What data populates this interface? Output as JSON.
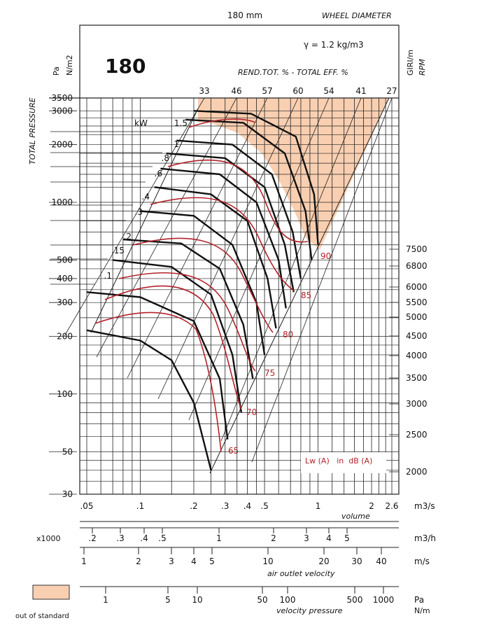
{
  "header": {
    "top_title": "180 mm",
    "top_right_title": "WHEEL DIAMETER",
    "model": "180",
    "density": "γ = 1.2 kg/m3",
    "efficiency_label": "REND.TOT. % - TOTAL EFF. %",
    "efficiency_values": [
      "33",
      "46",
      "57",
      "60",
      "54",
      "41",
      "27"
    ]
  },
  "left_axis": {
    "unit_pa": "Pa",
    "unit_nm2": "N/m2",
    "title": "TOTAL PRESSURE",
    "ticks": [
      "3500",
      "3000",
      "2000",
      "1000",
      "500",
      "400",
      "300",
      "200",
      "100",
      "50",
      "30"
    ]
  },
  "right_axis": {
    "unit_giri": "GIRI/m",
    "unit_rpm": "RPM",
    "ticks": [
      "7500",
      "6800",
      "6000",
      "5500",
      "5000",
      "4500",
      "4000",
      "3500",
      "3000",
      "2500",
      "2000"
    ]
  },
  "power_labels": {
    "unit": "kW",
    "values": [
      "1.5",
      "1",
      ".8",
      ".6",
      ".4",
      ".3",
      ".2",
      ".15",
      ".1"
    ]
  },
  "noise_labels": {
    "values": [
      "90",
      "85",
      "80",
      "75",
      "70",
      "65"
    ],
    "legend": "Lw (A)   in  dB (A)"
  },
  "scales": {
    "volume_s": {
      "ticks": [
        ".05",
        ".1",
        ".2",
        ".3",
        ".4",
        ".5",
        "1",
        "2",
        "2.6"
      ],
      "unit": "m3/s",
      "label": "volume"
    },
    "volume_h": {
      "prefix": "x1000",
      "ticks": [
        ".2",
        ".3",
        ".4",
        ".5",
        "1",
        "2",
        "3",
        "4",
        "5"
      ],
      "unit": "m3/h"
    },
    "velocity": {
      "ticks": [
        "1",
        "2",
        "3",
        "4",
        "5",
        "10",
        "20",
        "30",
        "40"
      ],
      "unit": "m/s",
      "label": "air outlet velocity"
    },
    "vpressure": {
      "ticks": [
        "1",
        "5",
        "10",
        "50",
        "100",
        "500",
        "1000"
      ],
      "unit_pa": "Pa",
      "unit_nm": "N/m",
      "label": "velocity pressure"
    }
  },
  "legend": {
    "label": "out of standard",
    "color": "#f9cfb1"
  },
  "colors": {
    "curve": "#111111",
    "noise": "#b3232b",
    "grid": "#222222"
  },
  "chart_data": {
    "type": "line",
    "title": "180",
    "xlabel": "volume",
    "ylabel": "TOTAL PRESSURE",
    "x_scale": "log",
    "y_scale": "log",
    "xlim": [
      0.05,
      2.6
    ],
    "ylim": [
      30,
      3500
    ],
    "series": [
      {
        "rpm": 2000,
        "x": [
          0.05,
          0.1,
          0.15,
          0.2,
          0.25
        ],
        "y": [
          215,
          190,
          150,
          90,
          40
        ]
      },
      {
        "rpm": 2500,
        "x": [
          0.05,
          0.1,
          0.2,
          0.28,
          0.31
        ],
        "y": [
          340,
          320,
          240,
          120,
          58
        ]
      },
      {
        "rpm": 3000,
        "x": [
          0.07,
          0.15,
          0.25,
          0.33,
          0.37
        ],
        "y": [
          500,
          460,
          330,
          160,
          80
        ]
      },
      {
        "rpm": 3500,
        "x": [
          0.08,
          0.17,
          0.28,
          0.38,
          0.43
        ],
        "y": [
          640,
          610,
          450,
          230,
          120
        ]
      },
      {
        "rpm": 4000,
        "x": [
          0.1,
          0.2,
          0.33,
          0.45,
          0.5
        ],
        "y": [
          900,
          850,
          600,
          300,
          160
        ]
      },
      {
        "rpm": 4500,
        "x": [
          0.12,
          0.25,
          0.4,
          0.52,
          0.58
        ],
        "y": [
          1200,
          1100,
          800,
          400,
          220
        ]
      },
      {
        "rpm": 5000,
        "x": [
          0.13,
          0.28,
          0.45,
          0.6,
          0.66
        ],
        "y": [
          1500,
          1400,
          1000,
          500,
          280
        ]
      },
      {
        "rpm": 5500,
        "x": [
          0.14,
          0.3,
          0.5,
          0.65,
          0.73
        ],
        "y": [
          1800,
          1700,
          1200,
          600,
          340
        ]
      },
      {
        "rpm": 6000,
        "x": [
          0.16,
          0.33,
          0.55,
          0.72,
          0.8
        ],
        "y": [
          2100,
          2000,
          1400,
          700,
          400
        ]
      },
      {
        "rpm": 6800,
        "x": [
          0.18,
          0.38,
          0.65,
          0.85,
          0.92
        ],
        "y": [
          2700,
          2600,
          1800,
          900,
          500
        ]
      },
      {
        "rpm": 7500,
        "x": [
          0.2,
          0.42,
          0.75,
          0.95,
          1.0
        ],
        "y": [
          3000,
          2900,
          2200,
          1100,
          600
        ]
      }
    ],
    "noise_levels_dBA": [
      65,
      70,
      75,
      80,
      85,
      90
    ]
  }
}
